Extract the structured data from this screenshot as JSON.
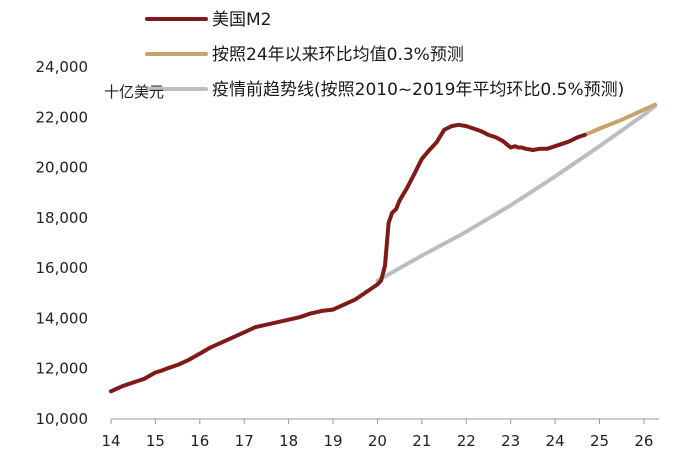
{
  "chart_data": {
    "type": "line",
    "unit_label": "十亿美元",
    "legend": [
      {
        "label": "美国M2",
        "color": "#7f1a1a"
      },
      {
        "label": "按照24年以来环比均值0.3%预测",
        "color": "#c9a46a"
      },
      {
        "label": "疫情前趋势线(按照2010~2019年平均环比0.5%预测)",
        "color": "#bdbdbd"
      }
    ],
    "x_ticks": [
      "14",
      "15",
      "16",
      "17",
      "18",
      "19",
      "20",
      "21",
      "22",
      "23",
      "24",
      "25",
      "26"
    ],
    "y_ticks": [
      "10,000",
      "12,000",
      "14,000",
      "16,000",
      "18,000",
      "20,000",
      "22,000",
      "24,000"
    ],
    "xlim": [
      2014.0,
      2026.25
    ],
    "ylim": [
      10000,
      24000
    ],
    "grid": false,
    "series": [
      {
        "name": "美国M2",
        "color": "#7f1a1a",
        "x": [
          2014.0,
          2014.25,
          2014.5,
          2014.75,
          2015.0,
          2015.1,
          2015.25,
          2015.5,
          2015.75,
          2016.0,
          2016.25,
          2016.5,
          2016.75,
          2017.0,
          2017.25,
          2017.5,
          2017.75,
          2018.0,
          2018.25,
          2018.5,
          2018.75,
          2019.0,
          2019.25,
          2019.5,
          2019.75,
          2020.0,
          2020.08,
          2020.17,
          2020.25,
          2020.33,
          2020.42,
          2020.5,
          2020.67,
          2020.83,
          2021.0,
          2021.17,
          2021.33,
          2021.5,
          2021.67,
          2021.83,
          2022.0,
          2022.17,
          2022.33,
          2022.5,
          2022.67,
          2022.83,
          2023.0,
          2023.1,
          2023.17,
          2023.25,
          2023.33,
          2023.5,
          2023.67,
          2023.83,
          2024.0,
          2024.17,
          2024.33,
          2024.5,
          2024.67
        ],
        "y": [
          11100,
          11300,
          11450,
          11600,
          11850,
          11900,
          12000,
          12150,
          12350,
          12600,
          12850,
          13050,
          13250,
          13450,
          13650,
          13750,
          13850,
          13950,
          14050,
          14200,
          14300,
          14350,
          14550,
          14750,
          15050,
          15350,
          15500,
          16100,
          17800,
          18200,
          18350,
          18700,
          19200,
          19750,
          20350,
          20700,
          21000,
          21500,
          21650,
          21700,
          21650,
          21550,
          21450,
          21300,
          21200,
          21050,
          20800,
          20850,
          20800,
          20800,
          20750,
          20700,
          20750,
          20750,
          20850,
          20950,
          21050,
          21200,
          21300
        ]
      },
      {
        "name": "按照24年以来环比均值0.3%预测",
        "color": "#c9a46a",
        "x": [
          2024.67,
          2025.0,
          2025.5,
          2026.0,
          2026.25
        ],
        "y": [
          21300,
          21550,
          21900,
          22300,
          22500
        ]
      },
      {
        "name": "疫情前趋势线(按照2010~2019年平均环比0.5%预测)",
        "color": "#bdbdbd",
        "x": [
          2020.0,
          2021.0,
          2022.0,
          2023.0,
          2024.0,
          2025.0,
          2026.0,
          2026.25
        ],
        "y": [
          15500,
          16500,
          17450,
          18500,
          19650,
          20850,
          22100,
          22450
        ]
      }
    ]
  }
}
